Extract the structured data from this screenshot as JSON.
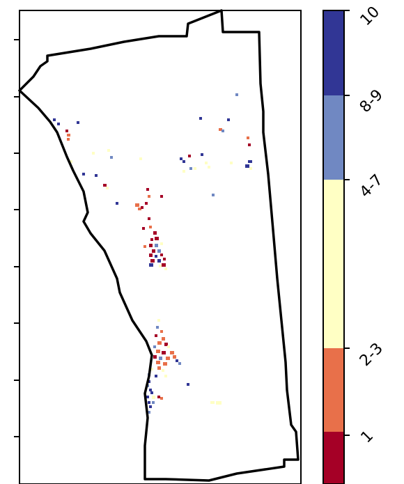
{
  "colorbar": {
    "bins": [
      {
        "label": "1",
        "color": "#a50026"
      },
      {
        "label": "2-3",
        "color": "#e8704a"
      },
      {
        "label": "4-7",
        "color": "#ffffc4"
      },
      {
        "label": "8-9",
        "color": "#7088c2"
      },
      {
        "label": "10",
        "color": "#313695"
      }
    ],
    "tick_labels": [
      "1",
      "2-3",
      "4-7",
      "8-9",
      "10"
    ]
  },
  "colors": {
    "boundary": "#000000",
    "background": "#ffffff"
  }
}
